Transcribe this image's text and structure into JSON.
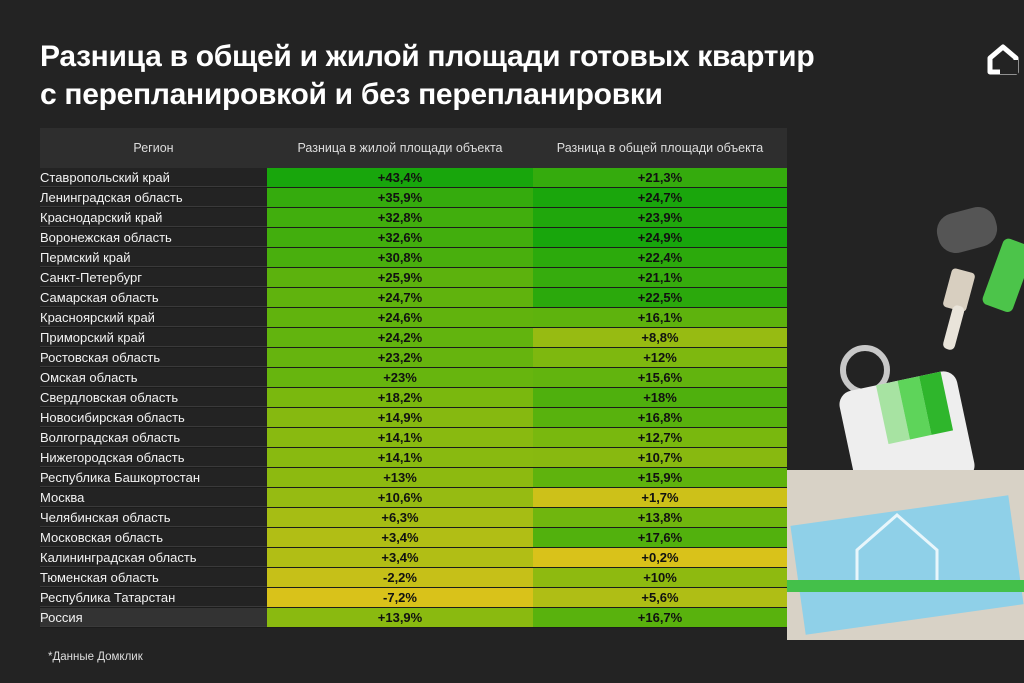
{
  "title_lines": [
    "Разница в общей и жилой площади готовых квартир",
    "с перепланировкой и без перепланировки"
  ],
  "footnote": "*Данные Домклик",
  "colors": {
    "background": "#232323",
    "low": "#d9c21a",
    "mid": "#7ab80e",
    "high": "#18a60c"
  },
  "icons": {
    "logo": "domclick-house-logo",
    "illustration": "paint-roller-brush-swatches-blueprint"
  },
  "chart_data": {
    "type": "table",
    "columns": [
      "Регион",
      "Разница в жилой площади объекта",
      "Разница в общей площади объекта"
    ],
    "rows": [
      {
        "region": "Ставропольский край",
        "living": "+43,4%",
        "total": "+21,3%",
        "living_value": 43.4,
        "total_value": 21.3
      },
      {
        "region": "Ленинградская область",
        "living": "+35,9%",
        "total": "+24,7%",
        "living_value": 35.9,
        "total_value": 24.7
      },
      {
        "region": "Краснодарский край",
        "living": "+32,8%",
        "total": "+23,9%",
        "living_value": 32.8,
        "total_value": 23.9
      },
      {
        "region": "Воронежская область",
        "living": "+32,6%",
        "total": "+24,9%",
        "living_value": 32.6,
        "total_value": 24.9
      },
      {
        "region": "Пермский край",
        "living": "+30,8%",
        "total": "+22,4%",
        "living_value": 30.8,
        "total_value": 22.4
      },
      {
        "region": "Санкт-Петербург",
        "living": "+25,9%",
        "total": "+21,1%",
        "living_value": 25.9,
        "total_value": 21.1
      },
      {
        "region": "Самарская область",
        "living": "+24,7%",
        "total": "+22,5%",
        "living_value": 24.7,
        "total_value": 22.5
      },
      {
        "region": "Красноярский край",
        "living": "+24,6%",
        "total": "+16,1%",
        "living_value": 24.6,
        "total_value": 16.1
      },
      {
        "region": "Приморский край",
        "living": "+24,2%",
        "total": "+8,8%",
        "living_value": 24.2,
        "total_value": 8.8
      },
      {
        "region": "Ростовская область",
        "living": "+23,2%",
        "total": "+12%",
        "living_value": 23.2,
        "total_value": 12
      },
      {
        "region": "Омская область",
        "living": "+23%",
        "total": "+15,6%",
        "living_value": 23,
        "total_value": 15.6
      },
      {
        "region": "Свердловская область",
        "living": "+18,2%",
        "total": "+18%",
        "living_value": 18.2,
        "total_value": 18
      },
      {
        "region": "Новосибирская область",
        "living": "+14,9%",
        "total": "+16,8%",
        "living_value": 14.9,
        "total_value": 16.8
      },
      {
        "region": "Волгоградская область",
        "living": "+14,1%",
        "total": "+12,7%",
        "living_value": 14.1,
        "total_value": 12.7
      },
      {
        "region": "Нижегородская область",
        "living": "+14,1%",
        "total": "+10,7%",
        "living_value": 14.1,
        "total_value": 10.7
      },
      {
        "region": "Республика Башкортостан",
        "living": "+13%",
        "total": "+15,9%",
        "living_value": 13,
        "total_value": 15.9
      },
      {
        "region": "Москва",
        "living": "+10,6%",
        "total": "+1,7%",
        "living_value": 10.6,
        "total_value": 1.7
      },
      {
        "region": "Челябинская область",
        "living": "+6,3%",
        "total": "+13,8%",
        "living_value": 6.3,
        "total_value": 13.8
      },
      {
        "region": "Московская область",
        "living": "+3,4%",
        "total": "+17,6%",
        "living_value": 3.4,
        "total_value": 17.6
      },
      {
        "region": "Калининградская область",
        "living": "+3,4%",
        "total": "+0,2%",
        "living_value": 3.4,
        "total_value": 0.2
      },
      {
        "region": "Тюменская область",
        "living": "-2,2%",
        "total": "+10%",
        "living_value": -2.2,
        "total_value": 10
      },
      {
        "region": "Республика Татарстан",
        "living": "-7,2%",
        "total": "+5,6%",
        "living_value": -7.2,
        "total_value": 5.6
      },
      {
        "region": "Россия",
        "living": "+13,9%",
        "total": "+16,7%",
        "living_value": 13.9,
        "total_value": 16.7
      }
    ]
  }
}
